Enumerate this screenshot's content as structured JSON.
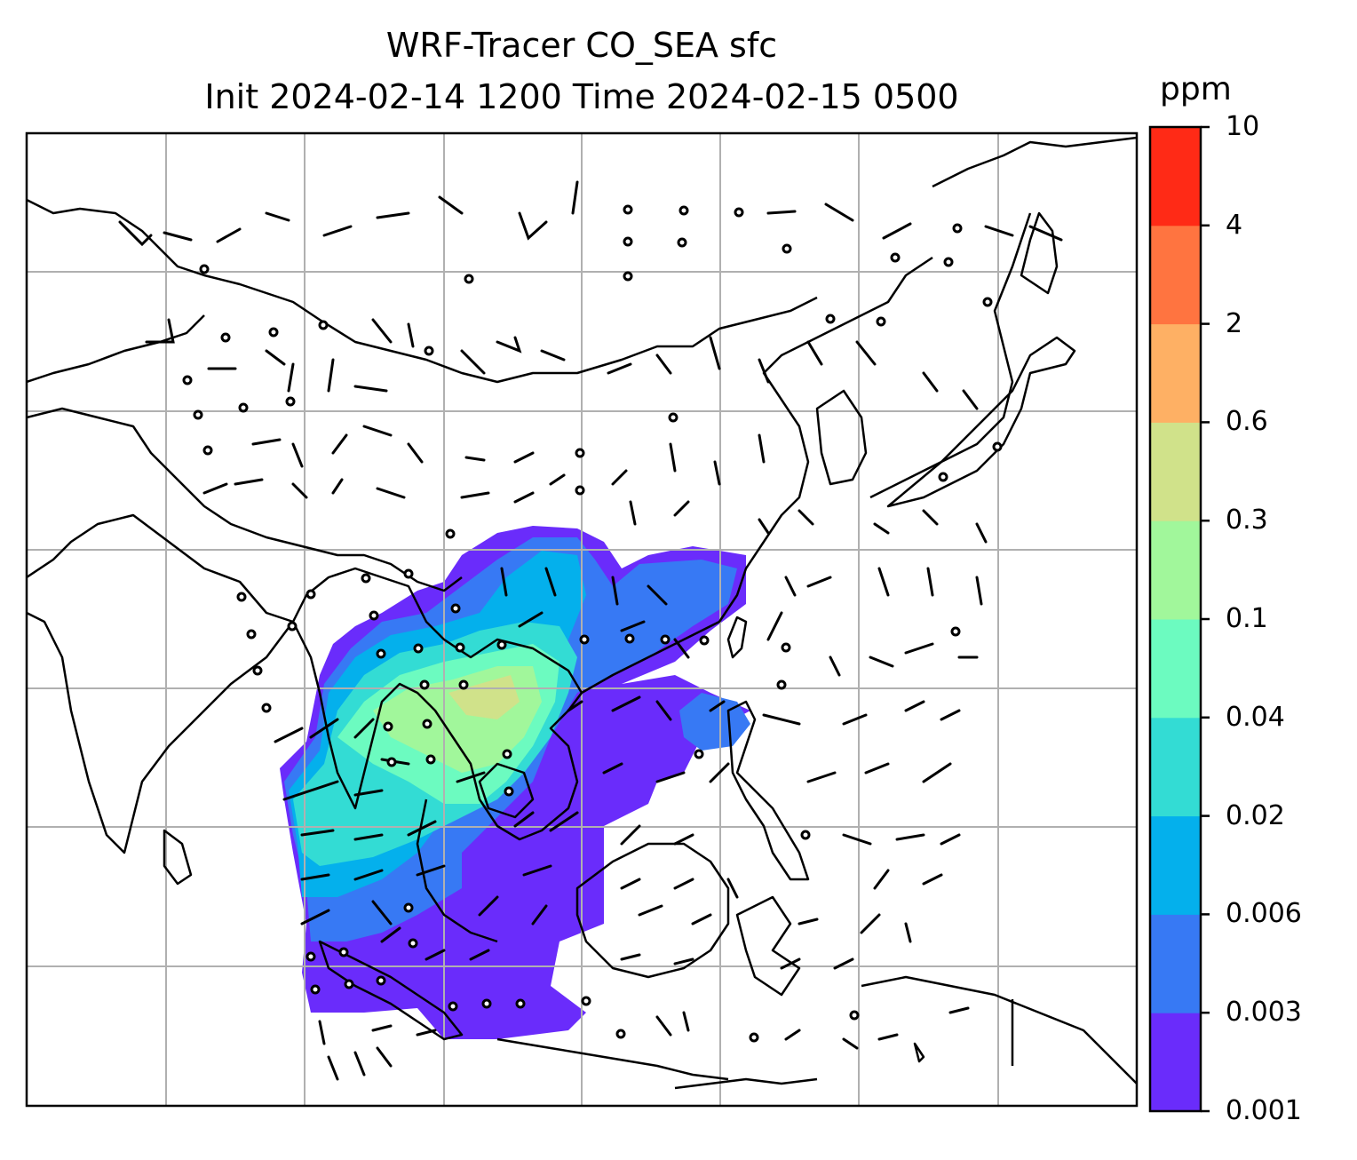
{
  "title_line1": "WRF-Tracer CO_SEA sfc",
  "title_line2": "Init 2024-02-14 1200 Time 2024-02-15 0500",
  "colorbar": {
    "units": "ppm",
    "labels": [
      "0.001",
      "0.003",
      "0.006",
      "0.02",
      "0.04",
      "0.1",
      "0.3",
      "0.6",
      "2",
      "4",
      "10"
    ],
    "colors": [
      "#6a2cfb",
      "#3779f4",
      "#04b0ec",
      "#33dcd4",
      "#6cfbc0",
      "#a1f79b",
      "#d0e28a",
      "#feb064",
      "#ff7440",
      "#ff2a16"
    ]
  }
}
